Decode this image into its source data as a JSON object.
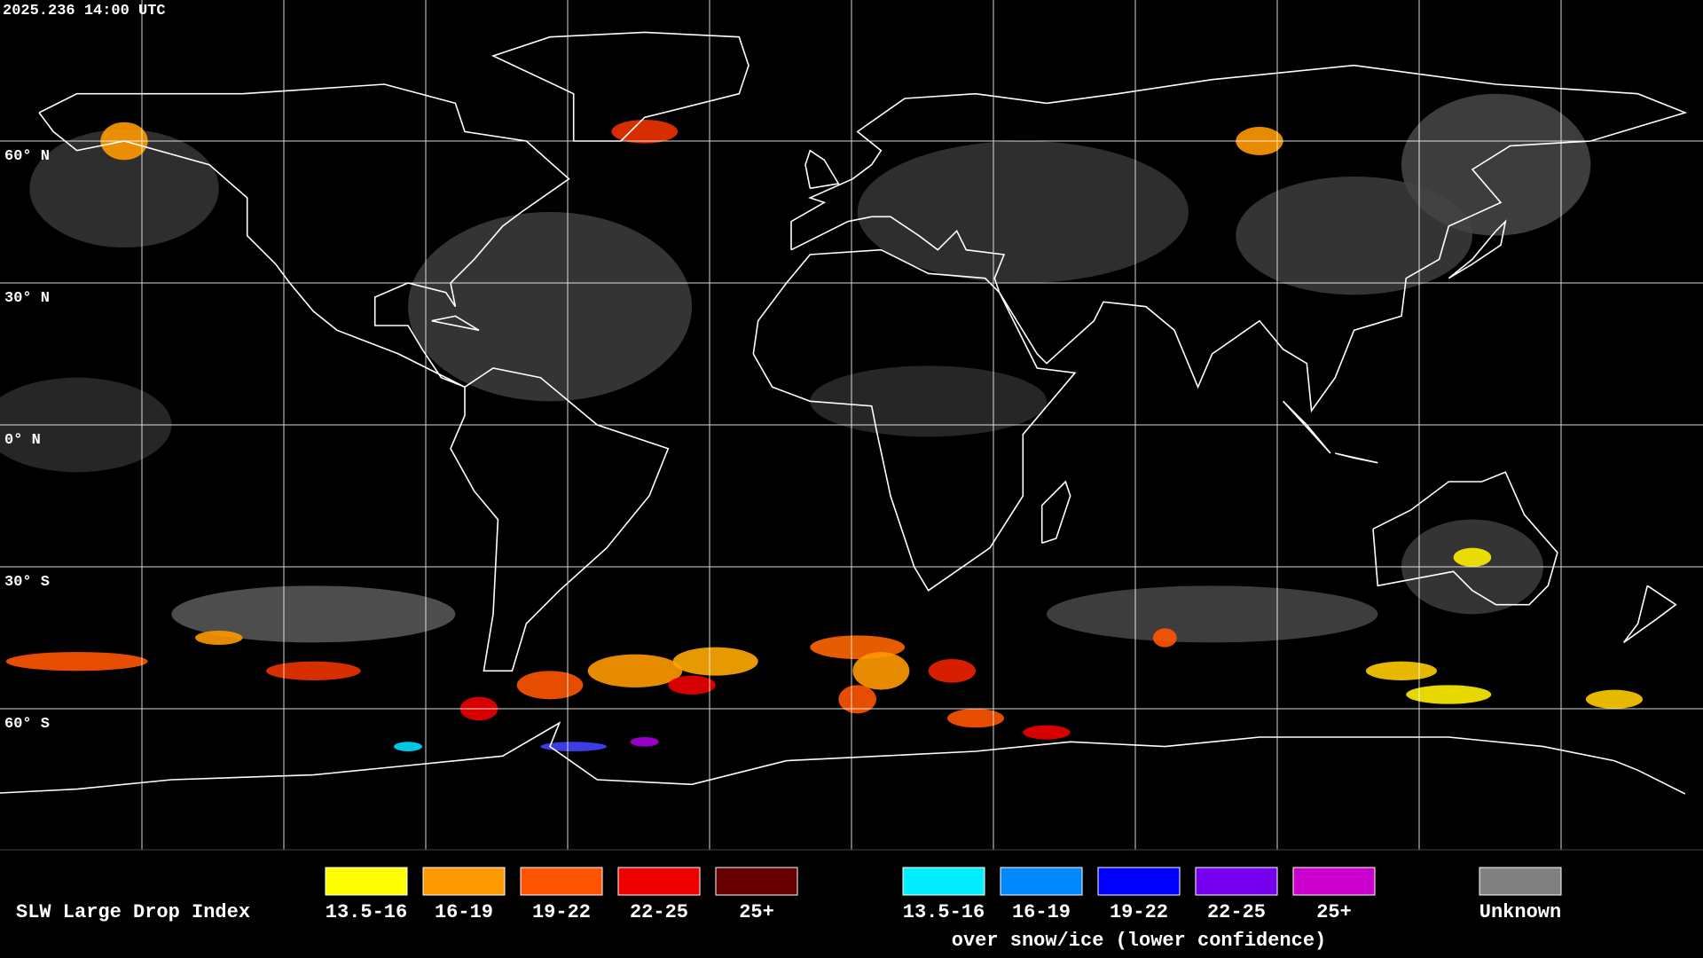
{
  "header": {
    "timestamp": "2025.236 14:00 UTC"
  },
  "map": {
    "lat_labels": [
      "60° N",
      "30° N",
      "0° N",
      "30° S",
      "60° S"
    ]
  },
  "legend": {
    "title": "SLW Large Drop Index",
    "groups": [
      {
        "items": [
          {
            "label": "13.5-16",
            "color": "#ffff00"
          },
          {
            "label": "16-19",
            "color": "#ff9900"
          },
          {
            "label": "19-22",
            "color": "#ff5500"
          },
          {
            "label": "22-25",
            "color": "#ee0000"
          },
          {
            "label": "25+",
            "color": "#660000"
          }
        ]
      },
      {
        "items": [
          {
            "label": "13.5-16",
            "color": "#00eeff"
          },
          {
            "label": "16-19",
            "color": "#0088ff"
          },
          {
            "label": "19-22",
            "color": "#0000ff"
          },
          {
            "label": "22-25",
            "color": "#7700ee"
          },
          {
            "label": "25+",
            "color": "#cc00cc"
          }
        ],
        "caption": "over snow/ice (lower confidence)"
      },
      {
        "items": [
          {
            "label": "Unknown",
            "color": "#808080"
          }
        ]
      }
    ]
  }
}
